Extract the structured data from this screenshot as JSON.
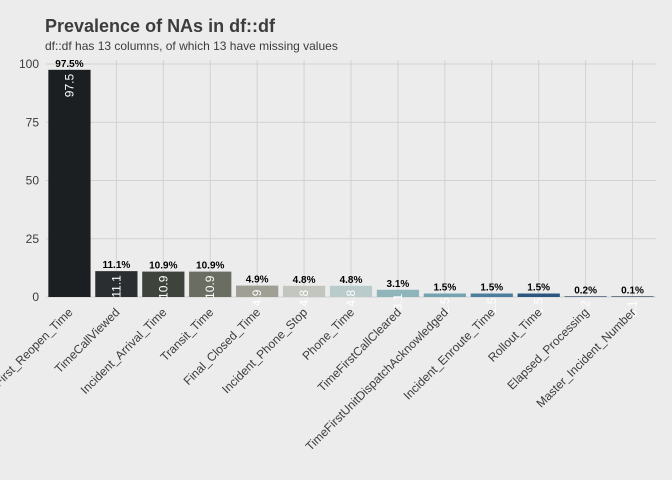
{
  "chart_data": {
    "type": "bar",
    "title": "Prevalence of NAs in df::df",
    "subtitle": "df::df has 13 columns, of which 13 have missing values",
    "xlabel": "",
    "ylabel": "",
    "ylim": [
      0,
      100
    ],
    "yticks": [
      "0",
      "25",
      "50",
      "75",
      "100"
    ],
    "grid": true,
    "categories": [
      "First_Reopen_Time",
      "TimeCallViewed",
      "Incident_Arrival_Time",
      "Transit_Time",
      "Final_Closed_Time",
      "Incident_Phone_Stop",
      "Phone_Time",
      "TimeFirstCallCleared",
      "TimeFirstUnitDispatchAcknowledged",
      "Incident_Enroute_Time",
      "Rollout_Time",
      "Elapsed_Processing",
      "Master_Incident_Number"
    ],
    "values": [
      97.5,
      11.1,
      10.9,
      10.9,
      4.9,
      4.8,
      4.8,
      3.1,
      1.5,
      1.5,
      1.5,
      0.2,
      0.1
    ],
    "value_labels": [
      "97.5%",
      "11.1%",
      "10.9%",
      "10.9%",
      "4.9%",
      "4.8%",
      "4.8%",
      "3.1%",
      "1.5%",
      "1.5%",
      "1.5%",
      "0.2%",
      "0.1%"
    ],
    "inbar_labels": [
      "97.5",
      "11.1",
      "10.9",
      "10.9",
      "4.9",
      "4.8",
      "4.8",
      "3.1",
      "1.5",
      "1.5",
      "1.5",
      "0.2",
      "0.1"
    ],
    "colors": [
      "#1b1f21",
      "#2a2e31",
      "#3e433c",
      "#6a6e62",
      "#a09f96",
      "#c3c5bf",
      "#b9cbca",
      "#8fb5bb",
      "#74a2b0",
      "#4c7f9f",
      "#2a5680",
      "#1a3657",
      "#18304d"
    ]
  }
}
